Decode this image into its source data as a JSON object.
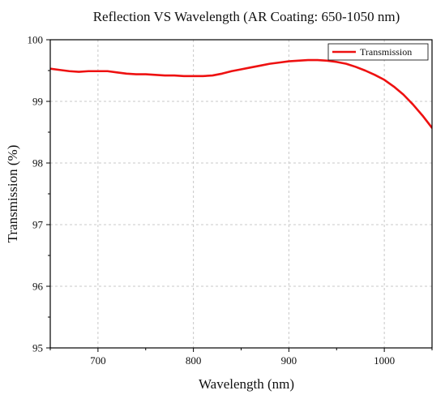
{
  "chart_data": {
    "type": "line",
    "title": "Reflection VS Wavelength  (AR Coating: 650-1050 nm)",
    "xlabel": "Wavelength (nm)",
    "ylabel": "Transmission (%)",
    "xlim": [
      650,
      1050
    ],
    "ylim": [
      95,
      100
    ],
    "xticks": [
      700,
      800,
      900,
      1000
    ],
    "yticks": [
      95,
      96,
      97,
      98,
      99,
      100
    ],
    "grid": true,
    "legend_position": "top-right",
    "series_color": "#ee1111",
    "series": [
      {
        "name": "Transmission",
        "x": [
          650,
          660,
          670,
          680,
          690,
          700,
          710,
          720,
          730,
          740,
          750,
          760,
          770,
          780,
          790,
          800,
          810,
          820,
          830,
          840,
          850,
          860,
          870,
          880,
          890,
          900,
          910,
          920,
          930,
          940,
          950,
          960,
          970,
          980,
          990,
          1000,
          1010,
          1020,
          1030,
          1040,
          1050
        ],
        "y": [
          99.53,
          99.51,
          99.49,
          99.48,
          99.49,
          99.49,
          99.49,
          99.47,
          99.45,
          99.44,
          99.44,
          99.43,
          99.42,
          99.42,
          99.41,
          99.41,
          99.41,
          99.42,
          99.45,
          99.49,
          99.52,
          99.55,
          99.58,
          99.61,
          99.63,
          99.65,
          99.66,
          99.67,
          99.67,
          99.66,
          99.64,
          99.61,
          99.56,
          99.5,
          99.43,
          99.35,
          99.24,
          99.11,
          98.95,
          98.77,
          98.57
        ]
      }
    ]
  }
}
